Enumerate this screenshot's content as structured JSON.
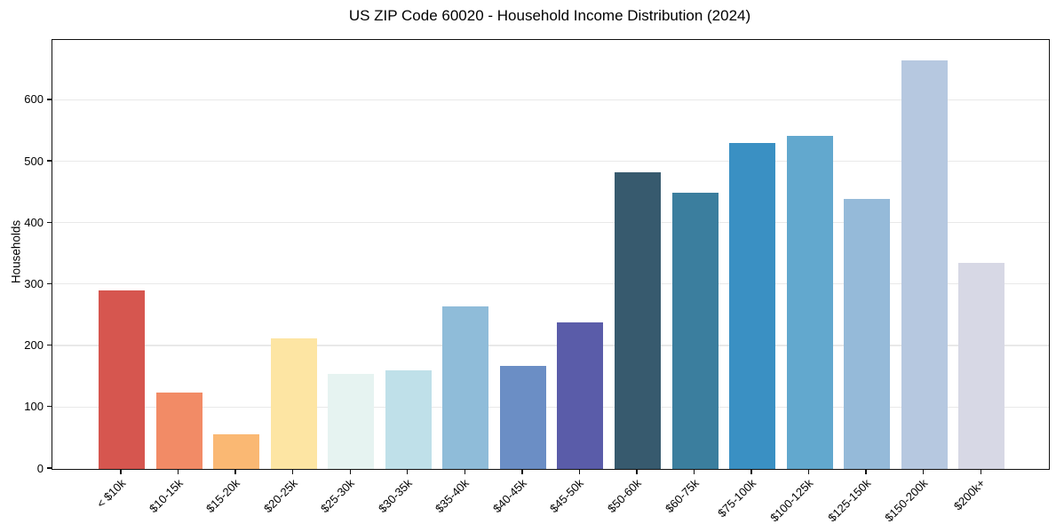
{
  "chart_data": {
    "type": "bar",
    "title": "US ZIP Code 60020 - Household Income Distribution (2024)",
    "xlabel": "",
    "ylabel": "Households",
    "categories": [
      "< $10k",
      "$10-15k",
      "$15-20k",
      "$20-25k",
      "$25-30k",
      "$30-35k",
      "$35-40k",
      "$40-45k",
      "$45-50k",
      "$50-60k",
      "$60-75k",
      "$75-100k",
      "$100-125k",
      "$125-150k",
      "$150-200k",
      "$200k+"
    ],
    "values": [
      291,
      125,
      57,
      213,
      154,
      161,
      264,
      168,
      239,
      482,
      449,
      531,
      542,
      440,
      665,
      336
    ],
    "bar_colors": [
      "#d6564f",
      "#f28b66",
      "#fab873",
      "#fde5a3",
      "#e6f3f1",
      "#bfe0e9",
      "#8fbcd9",
      "#6b8ec5",
      "#5a5ca9",
      "#375a6e",
      "#3b7e9e",
      "#3a90c3",
      "#62a8ce",
      "#95bad9",
      "#b6c8e0",
      "#d7d8e5"
    ],
    "yticks": [
      0,
      100,
      200,
      300,
      400,
      500,
      600
    ],
    "ylim": [
      0,
      698
    ],
    "grid": "horizontal",
    "legend": null,
    "axis_color": "#111111",
    "grid_color": "#e9e9e9"
  }
}
